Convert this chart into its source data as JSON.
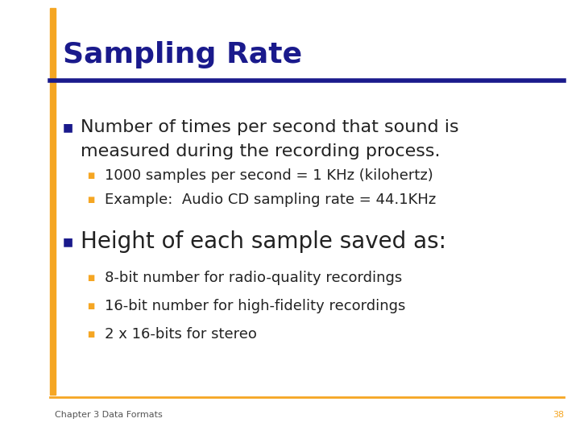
{
  "title": "Sampling Rate",
  "title_color": "#1a1a8c",
  "title_fontsize": 26,
  "bg_color": "#ffffff",
  "accent_bar_color": "#f5a623",
  "header_line_color": "#1a1a8c",
  "footer_line_color": "#f5a623",
  "bullet_color": "#1a1a8c",
  "sub_bullet_color": "#f5a623",
  "body_color": "#222222",
  "footer_text": "Chapter 3 Data Formats",
  "footer_number": "38",
  "footer_color": "#f5a623",
  "footer_text_color": "#555555",
  "bullet1_line1": "Number of times per second that sound is",
  "bullet1_line2": "measured during the recording process.",
  "bullet1_fontsize": 16,
  "sub_bullets1": [
    "1000 samples per second = 1 KHz (kilohertz)",
    "Example:  Audio CD sampling rate = 44.1KHz"
  ],
  "sub_bullet1_fontsize": 13,
  "bullet2": "Height of each sample saved as:",
  "bullet2_fontsize": 20,
  "sub_bullets2": [
    "8-bit number for radio-quality recordings",
    "16-bit number for high-fidelity recordings",
    "2 x 16-bits for stereo"
  ],
  "sub_bullet2_fontsize": 13
}
